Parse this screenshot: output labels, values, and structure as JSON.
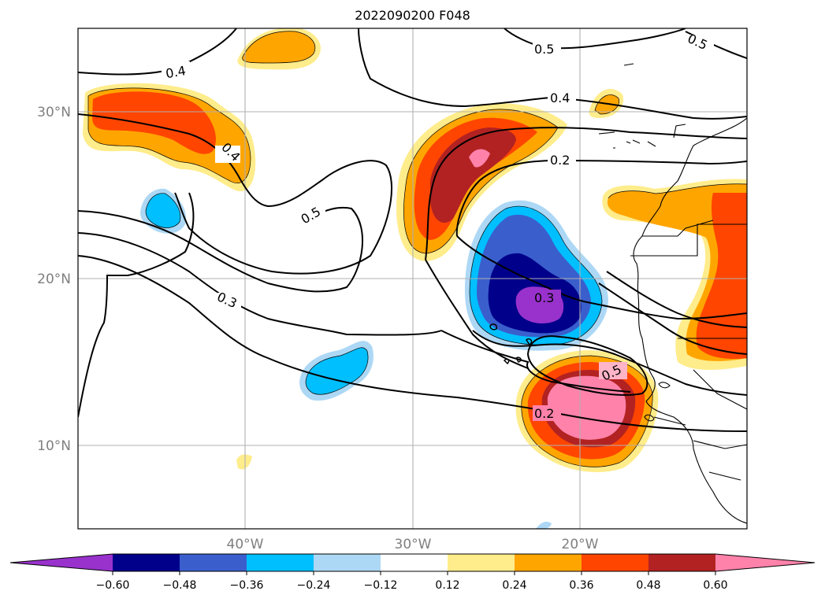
{
  "title": "2022090200 F048",
  "map": {
    "lon_ticks": [
      "40°W",
      "30°W",
      "20°W"
    ],
    "lat_ticks": [
      "30°N",
      "20°N",
      "10°N"
    ],
    "grid": true
  },
  "colorbar": {
    "labels": [
      "−0.60",
      "−0.48",
      "−0.36",
      "−0.24",
      "−0.12",
      "0.12",
      "0.24",
      "0.36",
      "0.48",
      "0.60"
    ],
    "colors": [
      "#9932cc",
      "#00008b",
      "#3a5fcd",
      "#00bfff",
      "#add8f5",
      "#ffffff",
      "#ffec8b",
      "#ffa500",
      "#ff4500",
      "#b22222",
      "#ff82ab"
    ],
    "extend": "both"
  },
  "contour_labels": [
    "0.4",
    "0.4",
    "0.4",
    "0.5",
    "0.5",
    "0.5",
    "0.5",
    "0.2",
    "0.3",
    "0.3",
    "0.2"
  ],
  "colors": {
    "frame": "#000000",
    "grid": "#b0b0b0",
    "tick_text": "#7f7f7f"
  }
}
